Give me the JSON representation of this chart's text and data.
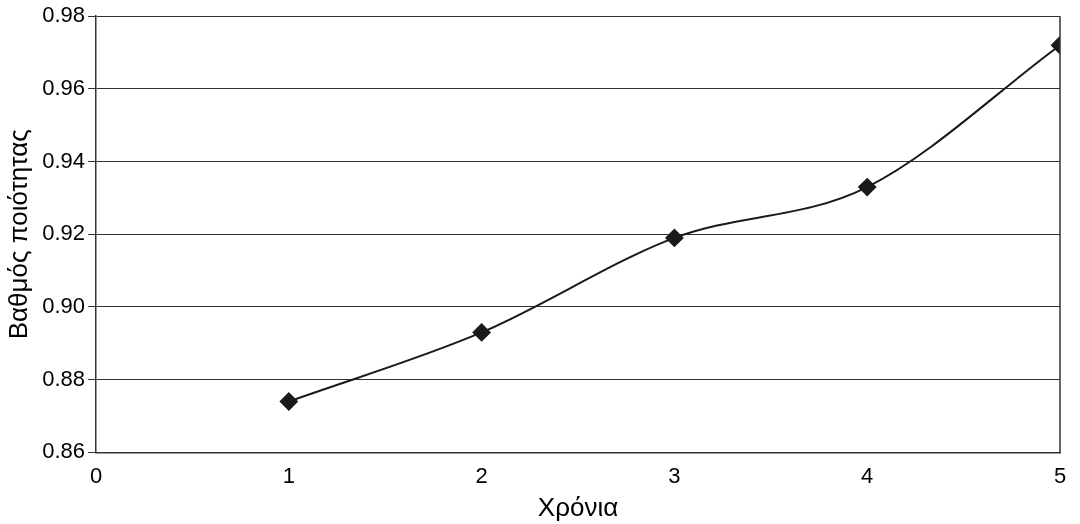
{
  "chart_data": {
    "type": "line",
    "xlabel": "Χρόνια",
    "ylabel": "Βαθμός ποιότητας",
    "x": [
      1,
      2,
      3,
      4,
      5
    ],
    "series": [
      {
        "color": "#1a1a1a",
        "values": [
          0.874,
          0.893,
          0.919,
          0.933,
          0.972
        ]
      }
    ],
    "xlim": [
      0,
      5
    ],
    "xticks": [
      0,
      1,
      2,
      3,
      4,
      5
    ],
    "ylim": [
      0.86,
      0.98
    ],
    "yticks": [
      0.86,
      0.88,
      {
        "value": 0.9,
        "label": "0.90"
      },
      0.92,
      0.94,
      0.96,
      0.98
    ],
    "grid": "y",
    "legend": false,
    "marker": "diamond",
    "line_style": "solid"
  }
}
